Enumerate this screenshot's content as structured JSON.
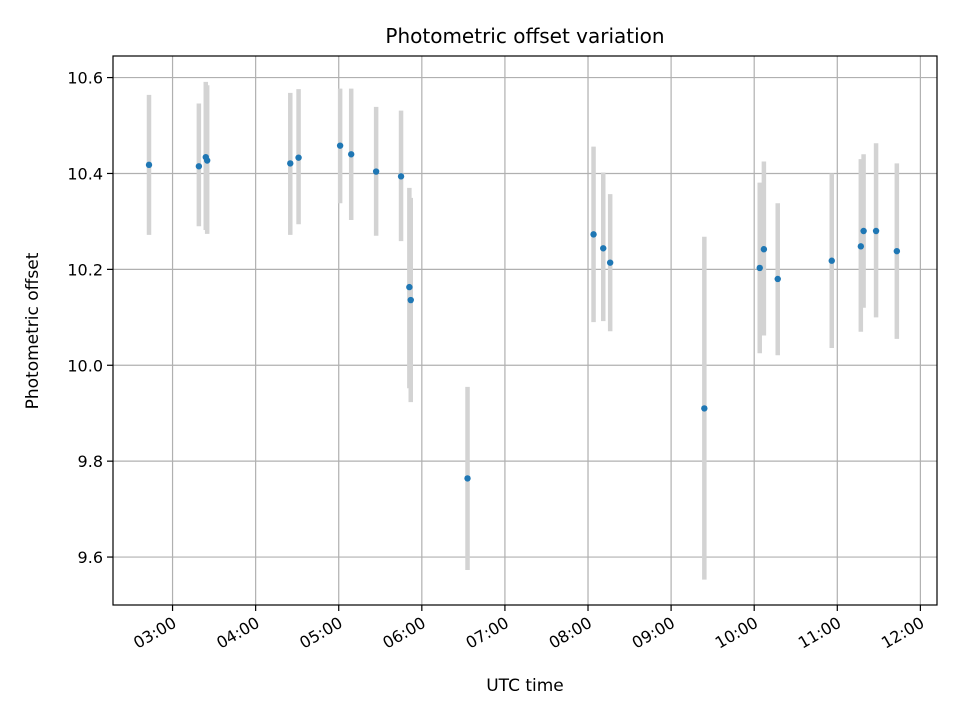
{
  "chart_data": {
    "type": "scatter",
    "title": "Photometric offset variation",
    "xlabel": "UTC time",
    "ylabel": "Photometric offset",
    "xlim": [
      "02:17",
      "12:12"
    ],
    "ylim": [
      9.5,
      10.645
    ],
    "grid": true,
    "x_ticks": [
      "03:00",
      "04:00",
      "05:00",
      "06:00",
      "07:00",
      "08:00",
      "09:00",
      "10:00",
      "11:00",
      "12:00"
    ],
    "y_ticks": [
      "9.6",
      "9.8",
      "10.0",
      "10.2",
      "10.4",
      "10.6"
    ],
    "colors": {
      "point": "#1f77b4",
      "errorbar": "#d3d3d3",
      "grid": "#b0b0b0"
    },
    "series": [
      {
        "points": [
          {
            "x": "02:43",
            "y": 10.418,
            "low": 10.272,
            "high": 10.564
          },
          {
            "x": "03:19",
            "y": 10.415,
            "low": 10.29,
            "high": 10.546
          },
          {
            "x": "03:24",
            "y": 10.434,
            "low": 10.282,
            "high": 10.591
          },
          {
            "x": "03:25",
            "y": 10.427,
            "low": 10.274,
            "high": 10.584
          },
          {
            "x": "04:25",
            "y": 10.421,
            "low": 10.272,
            "high": 10.568
          },
          {
            "x": "04:31",
            "y": 10.433,
            "low": 10.294,
            "high": 10.576
          },
          {
            "x": "05:01",
            "y": 10.458,
            "low": 10.338,
            "high": 10.577
          },
          {
            "x": "05:09",
            "y": 10.44,
            "low": 10.303,
            "high": 10.577
          },
          {
            "x": "05:27",
            "y": 10.404,
            "low": 10.27,
            "high": 10.539
          },
          {
            "x": "05:45",
            "y": 10.394,
            "low": 10.259,
            "high": 10.531
          },
          {
            "x": "05:51",
            "y": 10.163,
            "low": 9.952,
            "high": 10.37
          },
          {
            "x": "05:52",
            "y": 10.136,
            "low": 9.923,
            "high": 10.349
          },
          {
            "x": "06:33",
            "y": 9.764,
            "low": 9.573,
            "high": 9.955
          },
          {
            "x": "08:04",
            "y": 10.273,
            "low": 10.09,
            "high": 10.456
          },
          {
            "x": "08:11",
            "y": 10.244,
            "low": 10.092,
            "high": 10.402
          },
          {
            "x": "08:16",
            "y": 10.214,
            "low": 10.071,
            "high": 10.357
          },
          {
            "x": "09:24",
            "y": 9.91,
            "low": 9.553,
            "high": 10.268
          },
          {
            "x": "10:04",
            "y": 10.203,
            "low": 10.025,
            "high": 10.381
          },
          {
            "x": "10:07",
            "y": 10.242,
            "low": 10.062,
            "high": 10.425
          },
          {
            "x": "10:17",
            "y": 10.18,
            "low": 10.021,
            "high": 10.338
          },
          {
            "x": "10:56",
            "y": 10.218,
            "low": 10.036,
            "high": 10.4
          },
          {
            "x": "11:17",
            "y": 10.248,
            "low": 10.07,
            "high": 10.43
          },
          {
            "x": "11:19",
            "y": 10.28,
            "low": 10.12,
            "high": 10.44
          },
          {
            "x": "11:28",
            "y": 10.28,
            "low": 10.1,
            "high": 10.463
          },
          {
            "x": "11:43",
            "y": 10.238,
            "low": 10.055,
            "high": 10.421
          }
        ]
      }
    ]
  }
}
